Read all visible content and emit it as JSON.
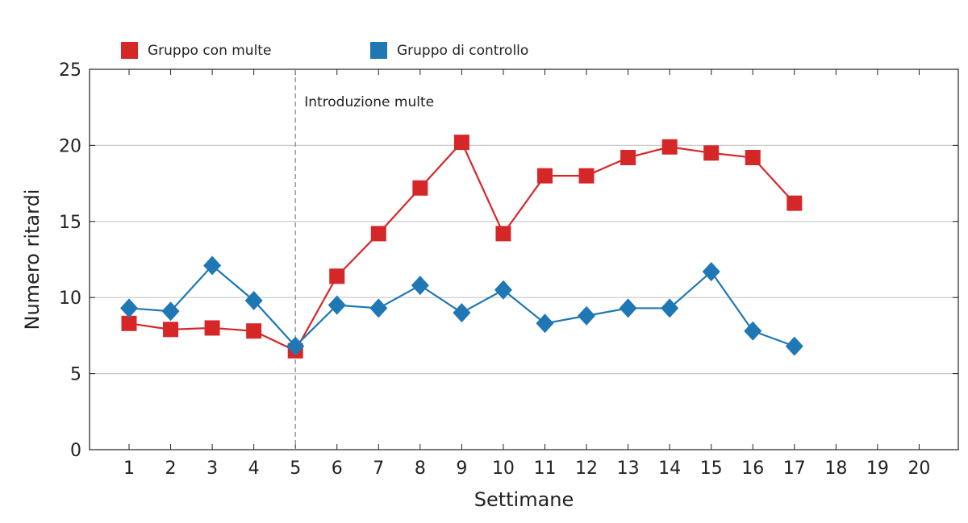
{
  "chart_data": {
    "type": "line",
    "xlabel": "Settimane",
    "ylabel": "Numero ritardi",
    "xlim": [
      1,
      20
    ],
    "ylim": [
      0,
      25
    ],
    "x_ticks": [
      1,
      2,
      3,
      4,
      5,
      6,
      7,
      8,
      9,
      10,
      11,
      12,
      13,
      14,
      15,
      16,
      17,
      18,
      19,
      20
    ],
    "y_ticks": [
      0,
      5,
      10,
      15,
      20,
      25
    ],
    "grid": "horizontal",
    "legend_position": "top-left",
    "annotation": {
      "x": 5,
      "text": "Introduzione multe"
    },
    "series": [
      {
        "name": "Gruppo con multe",
        "color": "#d62728",
        "marker": "square",
        "x": [
          1,
          2,
          3,
          4,
          5,
          6,
          7,
          8,
          9,
          10,
          11,
          12,
          13,
          14,
          15,
          16,
          17
        ],
        "values": [
          8.3,
          7.9,
          8.0,
          7.8,
          6.5,
          11.4,
          14.2,
          17.2,
          20.2,
          14.2,
          18.0,
          18.0,
          19.2,
          19.9,
          19.5,
          19.2,
          16.2
        ]
      },
      {
        "name": "Gruppo di controllo",
        "color": "#1f77b4",
        "marker": "diamond",
        "x": [
          1,
          2,
          3,
          4,
          5,
          6,
          7,
          8,
          9,
          10,
          11,
          12,
          13,
          14,
          15,
          16,
          17
        ],
        "values": [
          9.3,
          9.1,
          12.1,
          9.8,
          6.8,
          9.5,
          9.3,
          10.8,
          9.0,
          10.5,
          8.3,
          8.8,
          9.3,
          9.3,
          11.7,
          7.8,
          6.8
        ]
      }
    ]
  }
}
